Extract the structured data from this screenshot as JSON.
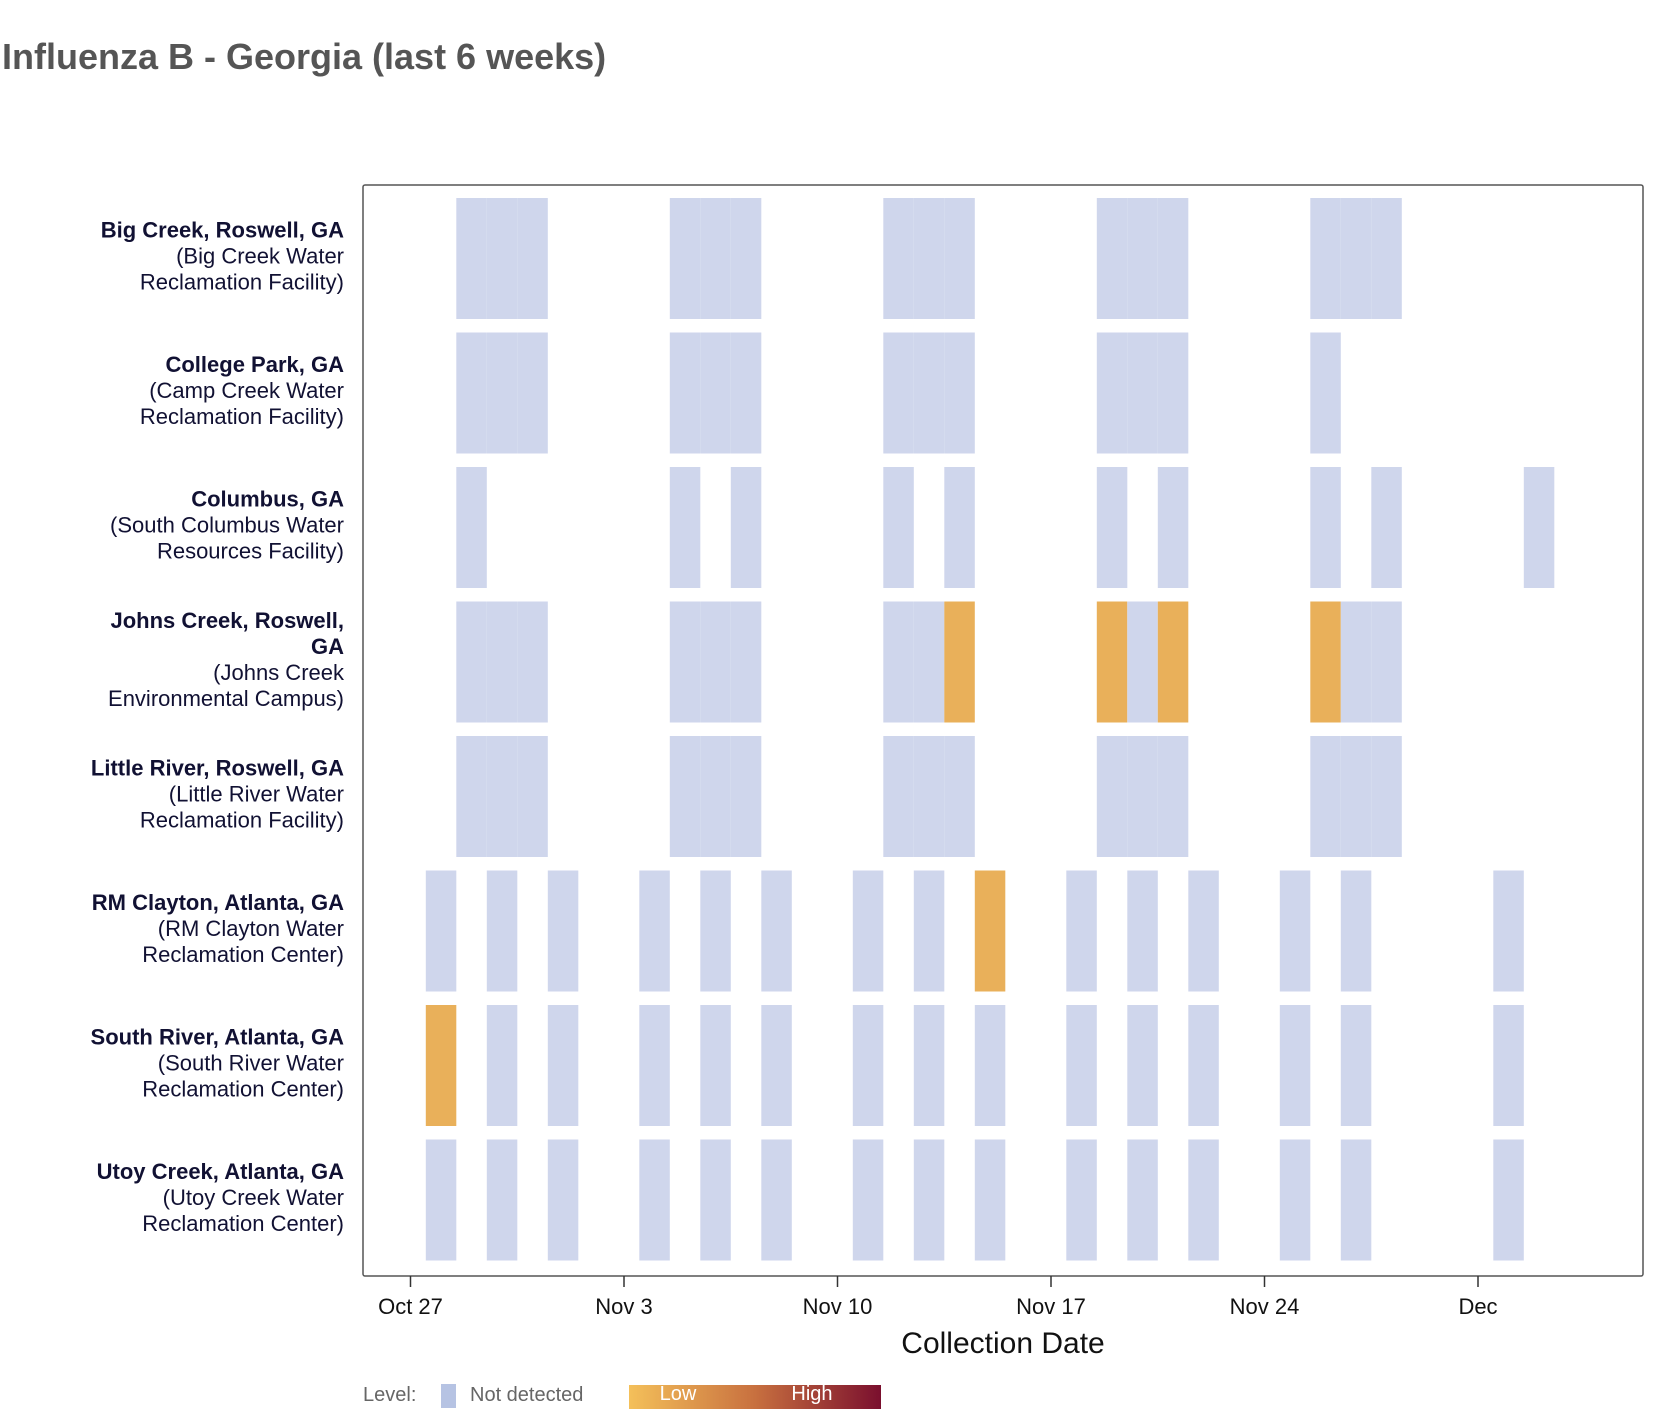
{
  "chart_data": {
    "type": "heatmap",
    "title": "Influenza B - Georgia (last 6 weeks)",
    "xlabel": "Collection Date",
    "x_ticks": [
      "Oct 27",
      "Nov 3",
      "Nov 10",
      "Nov 17",
      "Nov 24",
      "Dec"
    ],
    "x_tick_dates": [
      "2024-10-27",
      "2024-11-03",
      "2024-11-10",
      "2024-11-17",
      "2024-11-24",
      "2024-12-01"
    ],
    "x_range": [
      "2024-10-25",
      "2024-12-06"
    ],
    "grid": false,
    "legend_placement": "bottom",
    "legend": {
      "label": "Level:",
      "not_detected": "Not detected",
      "low": "Low",
      "high": "High"
    },
    "colors": {
      "not_detected": "#cfd6ec",
      "low": "#e9b05a",
      "gradient": [
        "#f4c05a",
        "#c8703f",
        "#7a0f2e"
      ]
    },
    "sites": [
      {
        "name_lines": [
          "Big Creek, Roswell, GA"
        ],
        "facility_lines": [
          "(Big Creek Water",
          "Reclamation Facility)"
        ],
        "samples": [
          {
            "date": "2024-10-29",
            "level": "not_detected"
          },
          {
            "date": "2024-10-30",
            "level": "not_detected"
          },
          {
            "date": "2024-10-31",
            "level": "not_detected"
          },
          {
            "date": "2024-11-05",
            "level": "not_detected"
          },
          {
            "date": "2024-11-06",
            "level": "not_detected"
          },
          {
            "date": "2024-11-07",
            "level": "not_detected"
          },
          {
            "date": "2024-11-12",
            "level": "not_detected"
          },
          {
            "date": "2024-11-13",
            "level": "not_detected"
          },
          {
            "date": "2024-11-14",
            "level": "not_detected"
          },
          {
            "date": "2024-11-19",
            "level": "not_detected"
          },
          {
            "date": "2024-11-20",
            "level": "not_detected"
          },
          {
            "date": "2024-11-21",
            "level": "not_detected"
          },
          {
            "date": "2024-11-26",
            "level": "not_detected"
          },
          {
            "date": "2024-11-27",
            "level": "not_detected"
          },
          {
            "date": "2024-11-28",
            "level": "not_detected"
          }
        ]
      },
      {
        "name_lines": [
          "College Park, GA"
        ],
        "facility_lines": [
          "(Camp Creek Water",
          "Reclamation Facility)"
        ],
        "samples": [
          {
            "date": "2024-10-29",
            "level": "not_detected"
          },
          {
            "date": "2024-10-30",
            "level": "not_detected"
          },
          {
            "date": "2024-10-31",
            "level": "not_detected"
          },
          {
            "date": "2024-11-05",
            "level": "not_detected"
          },
          {
            "date": "2024-11-06",
            "level": "not_detected"
          },
          {
            "date": "2024-11-07",
            "level": "not_detected"
          },
          {
            "date": "2024-11-12",
            "level": "not_detected"
          },
          {
            "date": "2024-11-13",
            "level": "not_detected"
          },
          {
            "date": "2024-11-14",
            "level": "not_detected"
          },
          {
            "date": "2024-11-19",
            "level": "not_detected"
          },
          {
            "date": "2024-11-20",
            "level": "not_detected"
          },
          {
            "date": "2024-11-21",
            "level": "not_detected"
          },
          {
            "date": "2024-11-26",
            "level": "not_detected"
          }
        ]
      },
      {
        "name_lines": [
          "Columbus, GA"
        ],
        "facility_lines": [
          "(South Columbus Water",
          "Resources Facility)"
        ],
        "samples": [
          {
            "date": "2024-10-29",
            "level": "not_detected"
          },
          {
            "date": "2024-11-05",
            "level": "not_detected"
          },
          {
            "date": "2024-11-07",
            "level": "not_detected"
          },
          {
            "date": "2024-11-12",
            "level": "not_detected"
          },
          {
            "date": "2024-11-14",
            "level": "not_detected"
          },
          {
            "date": "2024-11-19",
            "level": "not_detected"
          },
          {
            "date": "2024-11-21",
            "level": "not_detected"
          },
          {
            "date": "2024-11-26",
            "level": "not_detected"
          },
          {
            "date": "2024-11-28",
            "level": "not_detected"
          },
          {
            "date": "2024-12-03",
            "level": "not_detected"
          }
        ]
      },
      {
        "name_lines": [
          "Johns Creek, Roswell,",
          "GA"
        ],
        "facility_lines": [
          "(Johns Creek",
          "Environmental Campus)"
        ],
        "samples": [
          {
            "date": "2024-10-29",
            "level": "not_detected"
          },
          {
            "date": "2024-10-30",
            "level": "not_detected"
          },
          {
            "date": "2024-10-31",
            "level": "not_detected"
          },
          {
            "date": "2024-11-05",
            "level": "not_detected"
          },
          {
            "date": "2024-11-06",
            "level": "not_detected"
          },
          {
            "date": "2024-11-07",
            "level": "not_detected"
          },
          {
            "date": "2024-11-12",
            "level": "not_detected"
          },
          {
            "date": "2024-11-13",
            "level": "not_detected"
          },
          {
            "date": "2024-11-14",
            "level": "low"
          },
          {
            "date": "2024-11-19",
            "level": "low"
          },
          {
            "date": "2024-11-20",
            "level": "not_detected"
          },
          {
            "date": "2024-11-21",
            "level": "low"
          },
          {
            "date": "2024-11-26",
            "level": "low"
          },
          {
            "date": "2024-11-27",
            "level": "not_detected"
          },
          {
            "date": "2024-11-28",
            "level": "not_detected"
          }
        ]
      },
      {
        "name_lines": [
          "Little River, Roswell, GA"
        ],
        "facility_lines": [
          "(Little River Water",
          "Reclamation Facility)"
        ],
        "samples": [
          {
            "date": "2024-10-29",
            "level": "not_detected"
          },
          {
            "date": "2024-10-30",
            "level": "not_detected"
          },
          {
            "date": "2024-10-31",
            "level": "not_detected"
          },
          {
            "date": "2024-11-05",
            "level": "not_detected"
          },
          {
            "date": "2024-11-06",
            "level": "not_detected"
          },
          {
            "date": "2024-11-07",
            "level": "not_detected"
          },
          {
            "date": "2024-11-12",
            "level": "not_detected"
          },
          {
            "date": "2024-11-13",
            "level": "not_detected"
          },
          {
            "date": "2024-11-14",
            "level": "not_detected"
          },
          {
            "date": "2024-11-19",
            "level": "not_detected"
          },
          {
            "date": "2024-11-20",
            "level": "not_detected"
          },
          {
            "date": "2024-11-21",
            "level": "not_detected"
          },
          {
            "date": "2024-11-26",
            "level": "not_detected"
          },
          {
            "date": "2024-11-27",
            "level": "not_detected"
          },
          {
            "date": "2024-11-28",
            "level": "not_detected"
          }
        ]
      },
      {
        "name_lines": [
          "RM Clayton, Atlanta, GA"
        ],
        "facility_lines": [
          "(RM Clayton Water",
          "Reclamation Center)"
        ],
        "samples": [
          {
            "date": "2024-10-28",
            "level": "not_detected"
          },
          {
            "date": "2024-10-30",
            "level": "not_detected"
          },
          {
            "date": "2024-11-01",
            "level": "not_detected"
          },
          {
            "date": "2024-11-04",
            "level": "not_detected"
          },
          {
            "date": "2024-11-06",
            "level": "not_detected"
          },
          {
            "date": "2024-11-08",
            "level": "not_detected"
          },
          {
            "date": "2024-11-11",
            "level": "not_detected"
          },
          {
            "date": "2024-11-13",
            "level": "not_detected"
          },
          {
            "date": "2024-11-15",
            "level": "low"
          },
          {
            "date": "2024-11-18",
            "level": "not_detected"
          },
          {
            "date": "2024-11-20",
            "level": "not_detected"
          },
          {
            "date": "2024-11-22",
            "level": "not_detected"
          },
          {
            "date": "2024-11-25",
            "level": "not_detected"
          },
          {
            "date": "2024-11-27",
            "level": "not_detected"
          },
          {
            "date": "2024-12-02",
            "level": "not_detected"
          }
        ]
      },
      {
        "name_lines": [
          "South River, Atlanta, GA"
        ],
        "facility_lines": [
          "(South River Water",
          "Reclamation Center)"
        ],
        "samples": [
          {
            "date": "2024-10-28",
            "level": "low"
          },
          {
            "date": "2024-10-30",
            "level": "not_detected"
          },
          {
            "date": "2024-11-01",
            "level": "not_detected"
          },
          {
            "date": "2024-11-04",
            "level": "not_detected"
          },
          {
            "date": "2024-11-06",
            "level": "not_detected"
          },
          {
            "date": "2024-11-08",
            "level": "not_detected"
          },
          {
            "date": "2024-11-11",
            "level": "not_detected"
          },
          {
            "date": "2024-11-13",
            "level": "not_detected"
          },
          {
            "date": "2024-11-15",
            "level": "not_detected"
          },
          {
            "date": "2024-11-18",
            "level": "not_detected"
          },
          {
            "date": "2024-11-20",
            "level": "not_detected"
          },
          {
            "date": "2024-11-22",
            "level": "not_detected"
          },
          {
            "date": "2024-11-25",
            "level": "not_detected"
          },
          {
            "date": "2024-11-27",
            "level": "not_detected"
          },
          {
            "date": "2024-12-02",
            "level": "not_detected"
          }
        ]
      },
      {
        "name_lines": [
          "Utoy Creek, Atlanta, GA"
        ],
        "facility_lines": [
          "(Utoy Creek Water",
          "Reclamation Center)"
        ],
        "samples": [
          {
            "date": "2024-10-28",
            "level": "not_detected"
          },
          {
            "date": "2024-10-30",
            "level": "not_detected"
          },
          {
            "date": "2024-11-01",
            "level": "not_detected"
          },
          {
            "date": "2024-11-04",
            "level": "not_detected"
          },
          {
            "date": "2024-11-06",
            "level": "not_detected"
          },
          {
            "date": "2024-11-08",
            "level": "not_detected"
          },
          {
            "date": "2024-11-11",
            "level": "not_detected"
          },
          {
            "date": "2024-11-13",
            "level": "not_detected"
          },
          {
            "date": "2024-11-15",
            "level": "not_detected"
          },
          {
            "date": "2024-11-18",
            "level": "not_detected"
          },
          {
            "date": "2024-11-20",
            "level": "not_detected"
          },
          {
            "date": "2024-11-22",
            "level": "not_detected"
          },
          {
            "date": "2024-11-25",
            "level": "not_detected"
          },
          {
            "date": "2024-11-27",
            "level": "not_detected"
          },
          {
            "date": "2024-12-02",
            "level": "not_detected"
          }
        ]
      }
    ]
  }
}
